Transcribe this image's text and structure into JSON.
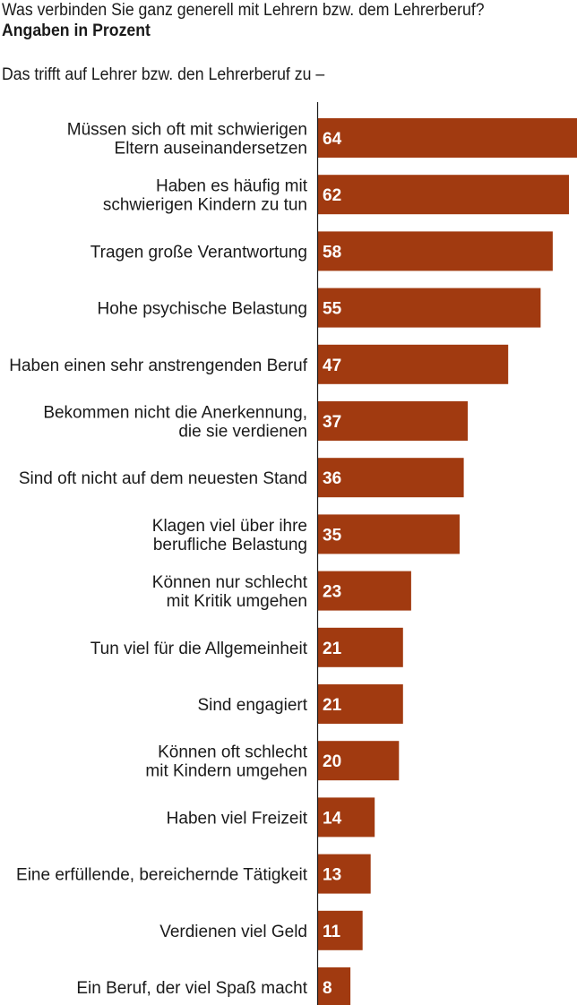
{
  "header": {
    "title": "Was verbinden Sie ganz generell mit Lehrern bzw. dem Lehrerberuf?",
    "subtitle": "Angaben in Prozent",
    "intro": "Das trifft auf Lehrer bzw. den Lehrerberuf zu –"
  },
  "colors": {
    "bar": "#a13a10",
    "axis": "#1a1a1a",
    "value_text": "#ffffff"
  },
  "chart_data": {
    "type": "bar",
    "orientation": "horizontal",
    "xlim": [
      0,
      64
    ],
    "grid": false,
    "categories": [
      [
        "Müssen sich oft mit schwierigen",
        "Eltern auseinandersetzen"
      ],
      [
        "Haben es häufig mit",
        "schwierigen Kindern zu tun"
      ],
      [
        "Tragen große Verantwortung"
      ],
      [
        "Hohe psychische Belastung"
      ],
      [
        "Haben einen sehr anstrengenden Beruf"
      ],
      [
        "Bekommen nicht die Anerkennung,",
        "die sie verdienen"
      ],
      [
        "Sind oft nicht auf dem neuesten Stand"
      ],
      [
        "Klagen viel über ihre",
        "berufliche Belastung"
      ],
      [
        "Können nur schlecht",
        "mit Kritik umgehen"
      ],
      [
        "Tun viel für die Allgemeinheit"
      ],
      [
        "Sind engagiert"
      ],
      [
        "Können oft schlecht",
        "mit Kindern umgehen"
      ],
      [
        "Haben viel Freizeit"
      ],
      [
        "Eine erfüllende, bereichernde Tätigkeit"
      ],
      [
        "Verdienen viel Geld"
      ],
      [
        "Ein Beruf, der viel Spaß macht"
      ]
    ],
    "values": [
      64,
      62,
      58,
      55,
      47,
      37,
      36,
      35,
      23,
      21,
      21,
      20,
      14,
      13,
      11,
      8
    ]
  }
}
